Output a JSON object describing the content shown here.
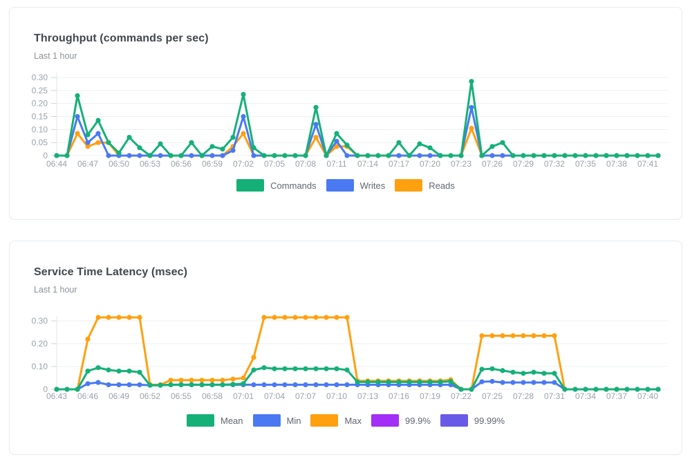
{
  "cards": [
    {
      "title": "Throughput (commands per sec)",
      "subtitle": "Last 1 hour"
    },
    {
      "title": "Service Time Latency (msec)",
      "subtitle": "Last 1 hour"
    }
  ],
  "chart_data": [
    {
      "type": "line",
      "title": "Throughput (commands per sec)",
      "subtitle": "Last 1 hour",
      "grid": "horizontal",
      "legend_position": "bottom",
      "ylim": [
        0,
        0.3
      ],
      "yticks": [
        0,
        0.05,
        0.1,
        0.15,
        0.2,
        0.25,
        0.3
      ],
      "x_label_every": 3,
      "x": [
        "06:44",
        "06:45",
        "06:46",
        "06:47",
        "06:48",
        "06:49",
        "06:50",
        "06:51",
        "06:52",
        "06:53",
        "06:54",
        "06:55",
        "06:56",
        "06:57",
        "06:58",
        "06:59",
        "07:00",
        "07:01",
        "07:02",
        "07:03",
        "07:04",
        "07:05",
        "07:06",
        "07:07",
        "07:08",
        "07:09",
        "07:10",
        "07:11",
        "07:12",
        "07:13",
        "07:14",
        "07:15",
        "07:16",
        "07:17",
        "07:18",
        "07:19",
        "07:20",
        "07:21",
        "07:22",
        "07:23",
        "07:24",
        "07:25",
        "07:26",
        "07:27",
        "07:28",
        "07:29",
        "07:30",
        "07:31",
        "07:32",
        "07:33",
        "07:34",
        "07:35",
        "07:36",
        "07:37",
        "07:38",
        "07:39",
        "07:40",
        "07:41",
        "07:42"
      ],
      "series": [
        {
          "name": "Commands",
          "color": "#15b077",
          "values": [
            0,
            0,
            0.23,
            0.08,
            0.135,
            0.05,
            0.01,
            0.07,
            0.03,
            0,
            0.045,
            0,
            0,
            0.05,
            0,
            0.035,
            0.025,
            0.07,
            0.235,
            0.03,
            0,
            0,
            0,
            0,
            0,
            0.185,
            0,
            0.085,
            0.04,
            0,
            0,
            0,
            0,
            0.05,
            0,
            0.045,
            0.03,
            0,
            0,
            0,
            0.285,
            0,
            0.035,
            0.05,
            0,
            0,
            0,
            0,
            0,
            0,
            0,
            0,
            0,
            0,
            0,
            0,
            0,
            0,
            0
          ]
        },
        {
          "name": "Writes",
          "color": "#4a79f2",
          "values": [
            0,
            0,
            0.15,
            0.05,
            0.085,
            0,
            0,
            0,
            0,
            0,
            0,
            0,
            0,
            0,
            0,
            0,
            0,
            0.02,
            0.15,
            0,
            0,
            0,
            0,
            0,
            0,
            0.12,
            0,
            0.055,
            0,
            0,
            0,
            0,
            0,
            0,
            0,
            0,
            0,
            0,
            0,
            0,
            0.185,
            0,
            0,
            0,
            0,
            0,
            0,
            0,
            0,
            0,
            0,
            0,
            0,
            0,
            0,
            0,
            0,
            0,
            0
          ]
        },
        {
          "name": "Reads",
          "color": "#ffa00f",
          "values": [
            0,
            0,
            0.085,
            0.035,
            0.05,
            0.05,
            0,
            0,
            0,
            0,
            0,
            0,
            0,
            0,
            0,
            0,
            0,
            0.035,
            0.085,
            0,
            0,
            0,
            0,
            0,
            0,
            0.07,
            0,
            0.035,
            0.035,
            0,
            0,
            0,
            0,
            0,
            0,
            0,
            0,
            0,
            0,
            0,
            0.105,
            0,
            0,
            0,
            0,
            0,
            0,
            0,
            0,
            0,
            0,
            0,
            0,
            0,
            0,
            0,
            0,
            0,
            0
          ]
        }
      ]
    },
    {
      "type": "line",
      "title": "Service Time Latency (msec)",
      "subtitle": "Last 1 hour",
      "grid": "horizontal",
      "legend_position": "bottom",
      "ylim": [
        0,
        0.34
      ],
      "yticks": [
        0,
        0.1,
        0.2,
        0.3
      ],
      "x_label_every": 3,
      "x": [
        "06:43",
        "06:44",
        "06:45",
        "06:46",
        "06:47",
        "06:48",
        "06:49",
        "06:50",
        "06:51",
        "06:52",
        "06:53",
        "06:54",
        "06:55",
        "06:56",
        "06:57",
        "06:58",
        "06:59",
        "07:00",
        "07:01",
        "07:02",
        "07:03",
        "07:04",
        "07:05",
        "07:06",
        "07:07",
        "07:08",
        "07:09",
        "07:10",
        "07:11",
        "07:12",
        "07:13",
        "07:14",
        "07:15",
        "07:16",
        "07:17",
        "07:18",
        "07:19",
        "07:20",
        "07:21",
        "07:22",
        "07:23",
        "07:24",
        "07:25",
        "07:26",
        "07:27",
        "07:28",
        "07:29",
        "07:30",
        "07:31",
        "07:32",
        "07:33",
        "07:34",
        "07:35",
        "07:36",
        "07:37",
        "07:38",
        "07:39",
        "07:40",
        "07:41"
      ],
      "series": [
        {
          "name": "Mean",
          "color": "#15b077",
          "values": [
            0,
            0,
            0,
            0.08,
            0.095,
            0.085,
            0.08,
            0.08,
            0.075,
            0.018,
            0.018,
            0.02,
            0.02,
            0.02,
            0.02,
            0.02,
            0.02,
            0.022,
            0.025,
            0.085,
            0.095,
            0.09,
            0.09,
            0.09,
            0.09,
            0.09,
            0.09,
            0.09,
            0.085,
            0.032,
            0.032,
            0.032,
            0.032,
            0.032,
            0.032,
            0.032,
            0.032,
            0.032,
            0.035,
            0,
            0,
            0.088,
            0.09,
            0.082,
            0.075,
            0.07,
            0.075,
            0.07,
            0.07,
            0,
            0,
            0,
            0,
            0,
            0,
            0,
            0,
            0,
            0
          ]
        },
        {
          "name": "Min",
          "color": "#4a79f2",
          "values": [
            0,
            0,
            0,
            0.025,
            0.03,
            0.02,
            0.02,
            0.02,
            0.02,
            0.018,
            0.018,
            0.02,
            0.02,
            0.02,
            0.02,
            0.02,
            0.02,
            0.02,
            0.02,
            0.02,
            0.02,
            0.02,
            0.02,
            0.02,
            0.02,
            0.02,
            0.02,
            0.02,
            0.02,
            0.02,
            0.02,
            0.02,
            0.02,
            0.02,
            0.02,
            0.02,
            0.02,
            0.02,
            0.02,
            0,
            0,
            0.033,
            0.035,
            0.03,
            0.03,
            0.03,
            0.03,
            0.03,
            0.03,
            0,
            0,
            0,
            0,
            0,
            0,
            0,
            0,
            0,
            0
          ]
        },
        {
          "name": "Max",
          "color": "#ffa00f",
          "values": [
            0,
            0,
            0,
            0.22,
            0.315,
            0.315,
            0.315,
            0.315,
            0.315,
            0.02,
            0.02,
            0.04,
            0.04,
            0.04,
            0.04,
            0.04,
            0.04,
            0.045,
            0.05,
            0.14,
            0.315,
            0.315,
            0.315,
            0.315,
            0.315,
            0.315,
            0.315,
            0.315,
            0.315,
            0.037,
            0.037,
            0.037,
            0.037,
            0.037,
            0.037,
            0.037,
            0.037,
            0.037,
            0.042,
            0,
            0,
            0.235,
            0.235,
            0.235,
            0.235,
            0.235,
            0.235,
            0.235,
            0.235,
            0,
            0,
            0,
            0,
            0,
            0,
            0,
            0,
            0,
            0
          ]
        },
        {
          "name": "99.9%",
          "color": "#a32ef5",
          "values": null
        },
        {
          "name": "99.99%",
          "color": "#6a5ae8",
          "values": null
        }
      ]
    }
  ]
}
